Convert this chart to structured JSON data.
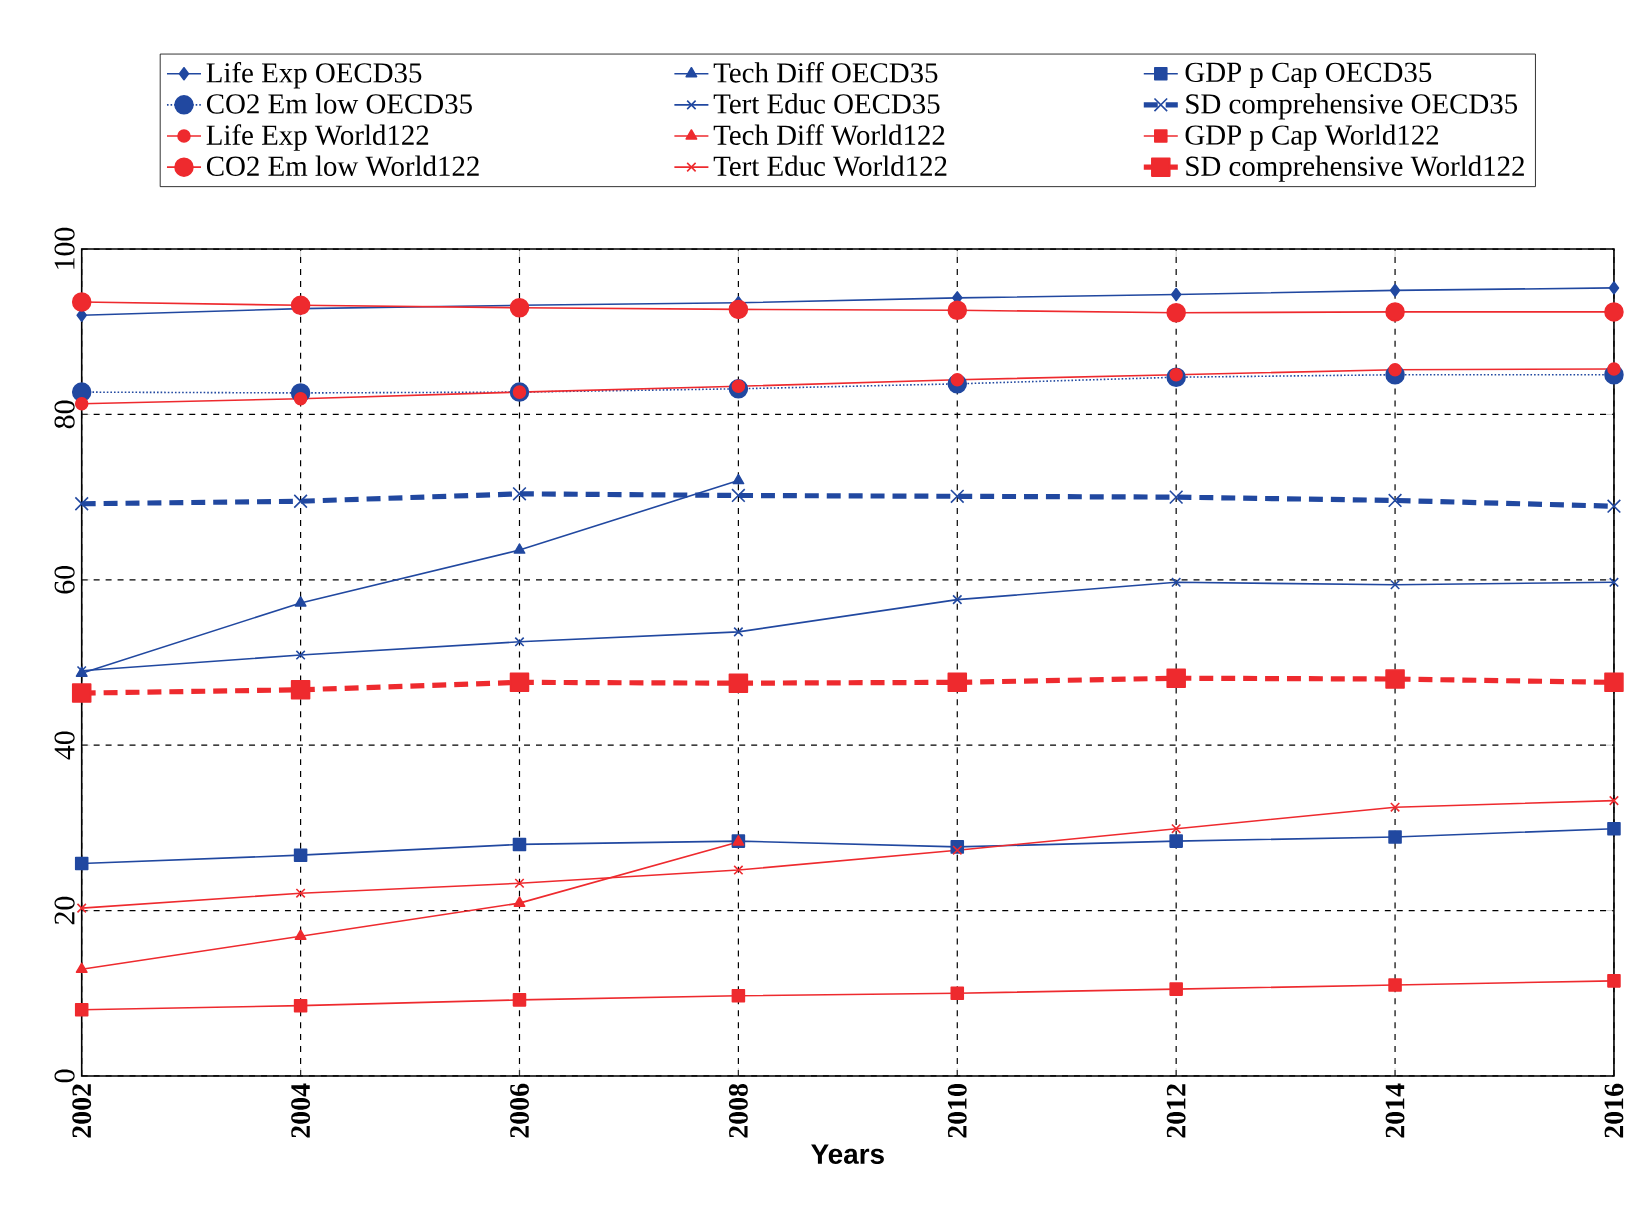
{
  "chart_data": {
    "type": "line",
    "xlabel": "Years",
    "x": [
      2002,
      2004,
      2006,
      2008,
      2010,
      2012,
      2014,
      2016
    ],
    "xlim": [
      2002,
      2016
    ],
    "xticks": [
      2002,
      2004,
      2006,
      2008,
      2010,
      2012,
      2014,
      2016
    ],
    "ylim": [
      0,
      100
    ],
    "yticks": [
      0,
      20,
      40,
      60,
      80,
      100
    ],
    "grid": true,
    "legend": "top",
    "series": [
      {
        "name": "Life Exp OECD35",
        "color": "#2148a0",
        "marker": "diamond",
        "line_style": "solid",
        "values": [
          92.0,
          92.8,
          93.2,
          93.5,
          94.1,
          94.5,
          95.0,
          95.3
        ]
      },
      {
        "name": "Tech Diff OECD35",
        "color": "#2148a0",
        "marker": "triangle",
        "line_style": "solid",
        "values": [
          48.7,
          57.2,
          63.6,
          72.0,
          null,
          null,
          null,
          null
        ]
      },
      {
        "name": "GDP p Cap OECD35",
        "color": "#2148a0",
        "marker": "square",
        "line_style": "solid",
        "values": [
          25.7,
          26.7,
          28.0,
          28.4,
          27.7,
          28.4,
          28.9,
          29.9
        ]
      },
      {
        "name": "CO2 Em low OECD35",
        "color": "#2148a0",
        "marker": "circle",
        "line_style": "dotted",
        "values": [
          82.7,
          82.6,
          82.7,
          83.1,
          83.7,
          84.5,
          84.8,
          84.8
        ]
      },
      {
        "name": "Tert Educ OECD35",
        "color": "#2148a0",
        "marker": "cross",
        "line_style": "solid",
        "values": [
          49.0,
          50.9,
          52.5,
          53.7,
          57.6,
          59.7,
          59.4,
          59.7
        ]
      },
      {
        "name": "SD comprehensive OECD35",
        "color": "#2148a0",
        "marker": "cross",
        "line_style": "dashed",
        "values": [
          69.2,
          69.5,
          70.4,
          70.2,
          70.1,
          70.0,
          69.6,
          68.9
        ]
      },
      {
        "name": "Life Exp World122",
        "color": "#ee2a2e",
        "marker": "circle",
        "line_style": "solid",
        "values": [
          81.3,
          81.9,
          82.7,
          83.4,
          84.2,
          84.8,
          85.4,
          85.5
        ]
      },
      {
        "name": "Tech Diff World122",
        "color": "#ee2a2e",
        "marker": "triangle",
        "line_style": "solid",
        "values": [
          12.9,
          16.9,
          20.9,
          28.3,
          null,
          null,
          null,
          null
        ]
      },
      {
        "name": "GDP p Cap World122",
        "color": "#ee2a2e",
        "marker": "square",
        "line_style": "solid",
        "values": [
          8.0,
          8.5,
          9.2,
          9.7,
          10.0,
          10.5,
          11.0,
          11.5
        ]
      },
      {
        "name": "CO2 Em low World122",
        "color": "#ee2a2e",
        "marker": "circle",
        "line_style": "solid",
        "values": [
          93.6,
          93.2,
          92.9,
          92.7,
          92.6,
          92.3,
          92.4,
          92.4
        ]
      },
      {
        "name": "Tert Educ World122",
        "color": "#ee2a2e",
        "marker": "cross",
        "line_style": "solid",
        "values": [
          20.3,
          22.1,
          23.3,
          24.9,
          27.3,
          29.9,
          32.5,
          33.3
        ]
      },
      {
        "name": "SD comprehensive World122",
        "color": "#ee2a2e",
        "marker": "square",
        "line_style": "dashed",
        "values": [
          46.3,
          46.7,
          47.6,
          47.5,
          47.6,
          48.1,
          48.0,
          47.6
        ]
      }
    ]
  }
}
